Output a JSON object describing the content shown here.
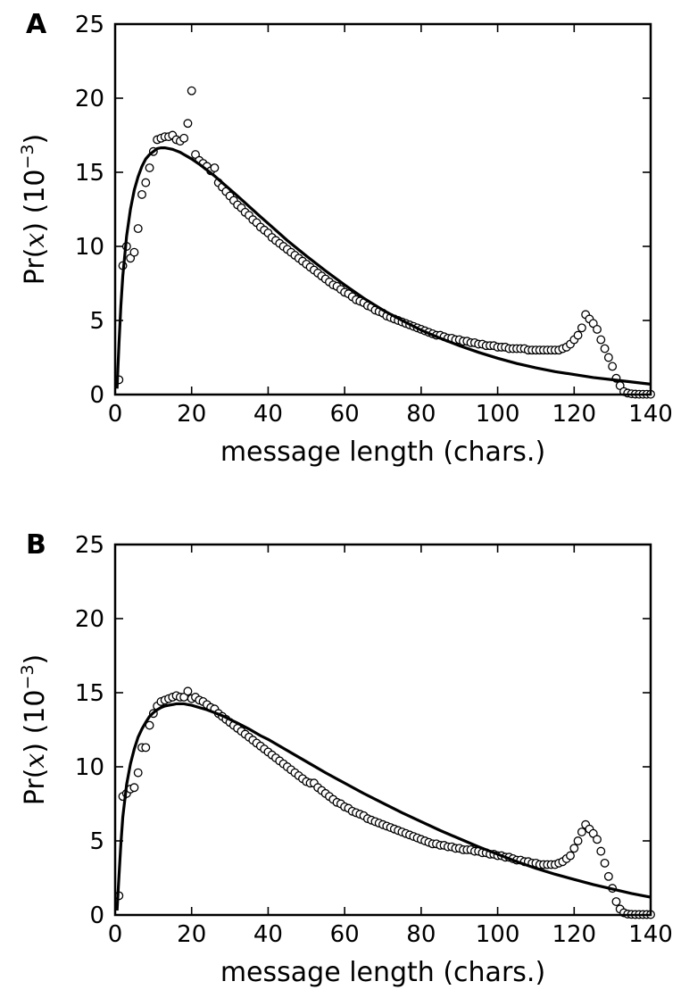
{
  "chart_data": [
    {
      "panel_label": "A",
      "type": "scatter",
      "xlabel": "message length (chars.)",
      "ylabel": {
        "prefix": "Pr(",
        "var": "x",
        "mid": ") (10",
        "exp": "−3",
        "suffix": ")"
      },
      "xlim": [
        0,
        140
      ],
      "ylim": [
        0,
        25
      ],
      "xticks": [
        0,
        20,
        40,
        60,
        80,
        100,
        120,
        140
      ],
      "yticks": [
        0,
        5,
        10,
        15,
        20,
        25
      ],
      "grid": false,
      "series": [
        {
          "kind": "points",
          "x": [
            1,
            2,
            3,
            4,
            5,
            6,
            7,
            8,
            9,
            10,
            11,
            12,
            13,
            14,
            15,
            16,
            17,
            18,
            19,
            20,
            21,
            22,
            23,
            24,
            25,
            26,
            27,
            28,
            29,
            30,
            31,
            32,
            33,
            34,
            35,
            36,
            37,
            38,
            39,
            40,
            41,
            42,
            43,
            44,
            45,
            46,
            47,
            48,
            49,
            50,
            51,
            52,
            53,
            54,
            55,
            56,
            57,
            58,
            59,
            60,
            61,
            62,
            63,
            64,
            65,
            66,
            67,
            68,
            69,
            70,
            71,
            72,
            73,
            74,
            75,
            76,
            77,
            78,
            79,
            80,
            81,
            82,
            83,
            84,
            85,
            86,
            87,
            88,
            89,
            90,
            91,
            92,
            93,
            94,
            95,
            96,
            97,
            98,
            99,
            100,
            101,
            102,
            103,
            104,
            105,
            106,
            107,
            108,
            109,
            110,
            111,
            112,
            113,
            114,
            115,
            116,
            117,
            118,
            119,
            120,
            121,
            122,
            123,
            124,
            125,
            126,
            127,
            128,
            129,
            130,
            131,
            132,
            133,
            134,
            135,
            136,
            137,
            138,
            139,
            140
          ],
          "y": [
            1.0,
            8.7,
            10.0,
            9.2,
            9.6,
            11.2,
            13.5,
            14.3,
            15.3,
            16.4,
            17.2,
            17.3,
            17.4,
            17.4,
            17.5,
            17.2,
            17.1,
            17.3,
            18.3,
            20.5,
            16.2,
            15.8,
            15.6,
            15.4,
            15.1,
            15.3,
            14.3,
            14.0,
            13.7,
            13.4,
            13.1,
            12.8,
            12.6,
            12.3,
            12.1,
            11.8,
            11.6,
            11.3,
            11.1,
            10.9,
            10.6,
            10.4,
            10.2,
            10.0,
            9.8,
            9.6,
            9.4,
            9.2,
            9.0,
            8.8,
            8.6,
            8.4,
            8.2,
            8.0,
            7.8,
            7.6,
            7.4,
            7.3,
            7.1,
            6.9,
            6.8,
            6.6,
            6.4,
            6.3,
            6.2,
            6.0,
            5.9,
            5.7,
            5.6,
            5.5,
            5.3,
            5.2,
            5.1,
            5.0,
            4.9,
            4.8,
            4.7,
            4.6,
            4.5,
            4.4,
            4.3,
            4.2,
            4.1,
            4.0,
            4.0,
            3.9,
            3.8,
            3.8,
            3.7,
            3.7,
            3.6,
            3.6,
            3.5,
            3.5,
            3.4,
            3.4,
            3.3,
            3.3,
            3.3,
            3.2,
            3.2,
            3.2,
            3.1,
            3.1,
            3.1,
            3.1,
            3.1,
            3.0,
            3.0,
            3.0,
            3.0,
            3.0,
            3.0,
            3.0,
            3.0,
            3.0,
            3.1,
            3.2,
            3.4,
            3.7,
            4.0,
            4.5,
            5.4,
            5.1,
            4.8,
            4.4,
            3.7,
            3.1,
            2.5,
            1.9,
            1.1,
            0.6,
            0.2,
            0.1,
            0.05,
            0.03,
            0.02,
            0.02,
            0.02,
            0.02
          ]
        },
        {
          "kind": "curve",
          "x": [
            0.5,
            1,
            1.5,
            2,
            3,
            4,
            5,
            6,
            7,
            8,
            9,
            10,
            11,
            12,
            13,
            14,
            15,
            16,
            17,
            18,
            19,
            20,
            22,
            24,
            26,
            28,
            30,
            32,
            35,
            38,
            40,
            45,
            50,
            55,
            60,
            65,
            70,
            75,
            80,
            85,
            90,
            95,
            100,
            105,
            110,
            115,
            120,
            125,
            130,
            135,
            140
          ],
          "y": [
            0.4,
            3.4,
            6.0,
            8.0,
            10.7,
            12.5,
            13.8,
            14.7,
            15.4,
            15.9,
            16.2,
            16.4,
            16.6,
            16.65,
            16.65,
            16.6,
            16.55,
            16.45,
            16.35,
            16.2,
            16.05,
            15.9,
            15.55,
            15.15,
            14.75,
            14.3,
            13.85,
            13.4,
            12.7,
            12.0,
            11.55,
            10.4,
            9.35,
            8.35,
            7.4,
            6.5,
            5.7,
            5.0,
            4.35,
            3.8,
            3.3,
            2.85,
            2.45,
            2.1,
            1.8,
            1.55,
            1.35,
            1.15,
            1.0,
            0.85,
            0.7
          ]
        }
      ]
    },
    {
      "panel_label": "B",
      "type": "scatter",
      "xlabel": "message length (chars.)",
      "ylabel": {
        "prefix": "Pr(",
        "var": "x",
        "mid": ") (10",
        "exp": "−3",
        "suffix": ")"
      },
      "xlim": [
        0,
        140
      ],
      "ylim": [
        0,
        25
      ],
      "xticks": [
        0,
        20,
        40,
        60,
        80,
        100,
        120,
        140
      ],
      "yticks": [
        0,
        5,
        10,
        15,
        20,
        25
      ],
      "grid": false,
      "series": [
        {
          "kind": "points",
          "x": [
            1,
            2,
            3,
            4,
            5,
            6,
            7,
            8,
            9,
            10,
            11,
            12,
            13,
            14,
            15,
            16,
            17,
            18,
            19,
            20,
            21,
            22,
            23,
            24,
            25,
            26,
            27,
            28,
            29,
            30,
            31,
            32,
            33,
            34,
            35,
            36,
            37,
            38,
            39,
            40,
            41,
            42,
            43,
            44,
            45,
            46,
            47,
            48,
            49,
            50,
            51,
            52,
            53,
            54,
            55,
            56,
            57,
            58,
            59,
            60,
            61,
            62,
            63,
            64,
            65,
            66,
            67,
            68,
            69,
            70,
            71,
            72,
            73,
            74,
            75,
            76,
            77,
            78,
            79,
            80,
            81,
            82,
            83,
            84,
            85,
            86,
            87,
            88,
            89,
            90,
            91,
            92,
            93,
            94,
            95,
            96,
            97,
            98,
            99,
            100,
            101,
            102,
            103,
            104,
            105,
            106,
            107,
            108,
            109,
            110,
            111,
            112,
            113,
            114,
            115,
            116,
            117,
            118,
            119,
            120,
            121,
            122,
            123,
            124,
            125,
            126,
            127,
            128,
            129,
            130,
            131,
            132,
            133,
            134,
            135,
            136,
            137,
            138,
            139,
            140
          ],
          "y": [
            1.3,
            8.0,
            8.2,
            8.5,
            8.6,
            9.6,
            11.3,
            11.3,
            12.8,
            13.6,
            14.1,
            14.4,
            14.5,
            14.6,
            14.7,
            14.8,
            14.7,
            14.7,
            15.1,
            14.6,
            14.7,
            14.5,
            14.4,
            14.2,
            14.0,
            13.9,
            13.6,
            13.4,
            13.2,
            13.0,
            12.8,
            12.6,
            12.4,
            12.2,
            12.0,
            11.8,
            11.6,
            11.4,
            11.2,
            11.0,
            10.8,
            10.6,
            10.4,
            10.2,
            10.0,
            9.8,
            9.6,
            9.4,
            9.2,
            9.0,
            8.9,
            8.9,
            8.6,
            8.4,
            8.2,
            8.0,
            7.8,
            7.6,
            7.5,
            7.3,
            7.2,
            7.0,
            6.9,
            6.8,
            6.7,
            6.5,
            6.4,
            6.3,
            6.2,
            6.1,
            6.0,
            5.9,
            5.8,
            5.7,
            5.6,
            5.5,
            5.4,
            5.3,
            5.2,
            5.1,
            5.0,
            4.9,
            4.8,
            4.8,
            4.7,
            4.7,
            4.6,
            4.6,
            4.5,
            4.5,
            4.4,
            4.4,
            4.4,
            4.3,
            4.3,
            4.2,
            4.2,
            4.1,
            4.1,
            4.0,
            4.0,
            3.9,
            3.9,
            3.8,
            3.7,
            3.7,
            3.6,
            3.6,
            3.5,
            3.5,
            3.4,
            3.4,
            3.4,
            3.4,
            3.4,
            3.5,
            3.6,
            3.8,
            4.0,
            4.5,
            5.0,
            5.6,
            6.1,
            5.8,
            5.5,
            5.1,
            4.3,
            3.5,
            2.6,
            1.8,
            0.9,
            0.4,
            0.15,
            0.06,
            0.04,
            0.03,
            0.03,
            0.03,
            0.03,
            0.03
          ]
        },
        {
          "kind": "curve",
          "x": [
            0.5,
            1,
            1.5,
            2,
            3,
            4,
            5,
            6,
            7,
            8,
            9,
            10,
            11,
            12,
            13,
            14,
            15,
            16,
            17,
            18,
            19,
            20,
            22,
            24,
            26,
            28,
            30,
            32,
            35,
            38,
            40,
            45,
            50,
            55,
            60,
            65,
            70,
            75,
            80,
            85,
            90,
            95,
            100,
            105,
            110,
            115,
            120,
            125,
            130,
            135,
            140
          ],
          "y": [
            0.3,
            2.6,
            4.8,
            6.6,
            8.8,
            10.2,
            11.2,
            12.0,
            12.55,
            13.0,
            13.4,
            13.65,
            13.85,
            14.0,
            14.1,
            14.15,
            14.2,
            14.25,
            14.25,
            14.25,
            14.2,
            14.15,
            14.0,
            13.85,
            13.65,
            13.45,
            13.2,
            12.95,
            12.55,
            12.1,
            11.85,
            11.1,
            10.35,
            9.6,
            8.9,
            8.2,
            7.55,
            6.9,
            6.3,
            5.7,
            5.15,
            4.6,
            4.1,
            3.6,
            3.15,
            2.75,
            2.4,
            2.05,
            1.75,
            1.45,
            1.2
          ]
        }
      ]
    }
  ]
}
